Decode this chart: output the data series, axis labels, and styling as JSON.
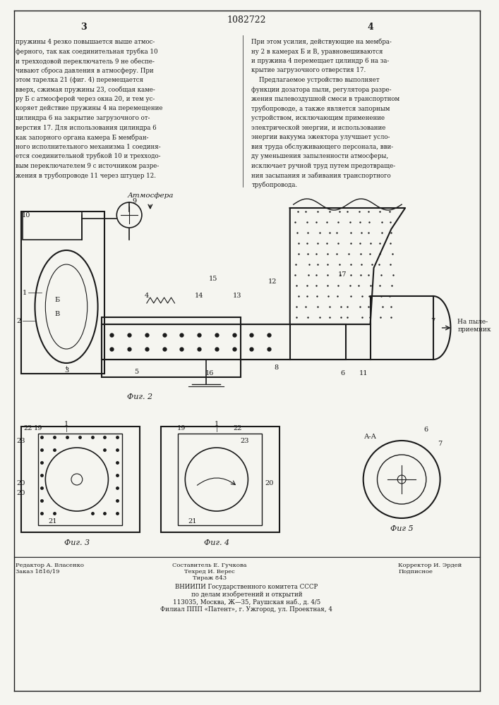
{
  "title": "1082722",
  "page_numbers": [
    "3",
    "4"
  ],
  "background_color": "#f5f5f0",
  "text_color": "#1a1a1a",
  "left_text": [
    "пружины 4 резко повышается выше атмос-",
    "ферного, так как соединительная трубка 10",
    "и трехходовой переключатель 9 не обеспе-",
    "чивают сброса давления в атмосферу. При",
    "этом тарелка 21 (фиг. 4) перемещается",
    "вверх, сжимая пружины 23, сообщая каме-",
    "ру Б с атмосферой через окна 20, и тем ус-",
    "коряет действие пружины 4 на перемещение",
    "цилиндра 6 на закрытие загрузочного от-",
    "верстия 17. Для использования цилиндра 6",
    "как запорного органа камера Б мембран-",
    "ного исполнительного механизма 1 соединя-",
    "ется соединительной трубкой 10 и трехходо-",
    "вым переключателем 9 с источником разре-",
    "жения в трубопроводе 11 через штуцер 12."
  ],
  "right_text": [
    "При этом усилия, действующие на мембра-",
    "ну 2 в камерах Б и В, уравновешиваются",
    "и пружина 4 перемещает цилиндр 6 на за-",
    "крытие загрузочного отверстия 17.",
    "    Предлагаемое устройство выполняет",
    "функции дозатора пыли, регулятора разре-",
    "жения пылевоздушной смеси в транспортном",
    "трубопроводе, а также является запорным",
    "устройством, исключающим применение",
    "электрической энергии, и использование",
    "энергии вакуума эжектора улучшает усло-",
    "вия труда обслуживающего персонала, вви-",
    "ду уменьшения запыленности атмосферы,",
    "исключает ручной труд путем предотвраще-",
    "ния засыпания и забивания транспортного",
    "трубопровода."
  ],
  "fig2_caption": "Фиг. 2",
  "fig3_caption": "Фиг. 3",
  "fig4_caption": "Фиг. 4",
  "fig5_caption": "Фиг 5",
  "fig5_label": "А-А",
  "atm_label": "Атмосфера",
  "napyle_label": "На пыле-\nприемник",
  "bottom_text_left": "Редактор А. Власенко\nЗаказ 1816/19",
  "bottom_text_center": "Составитель Е. Гучкова\nТехред И. Верес\nТираж 843",
  "bottom_text_vnipi": "ВНИИПИ Государственного комитета СССР\nпо делам изобретений и открытий\n113035, Москва, Ж—35, Раушская наб., д. 4/5\nФилиал ППП «Патент», г. Ужгород, ул. Проектная, 4",
  "bottom_text_right": "Корректор И. Эрдей\nПодписное"
}
